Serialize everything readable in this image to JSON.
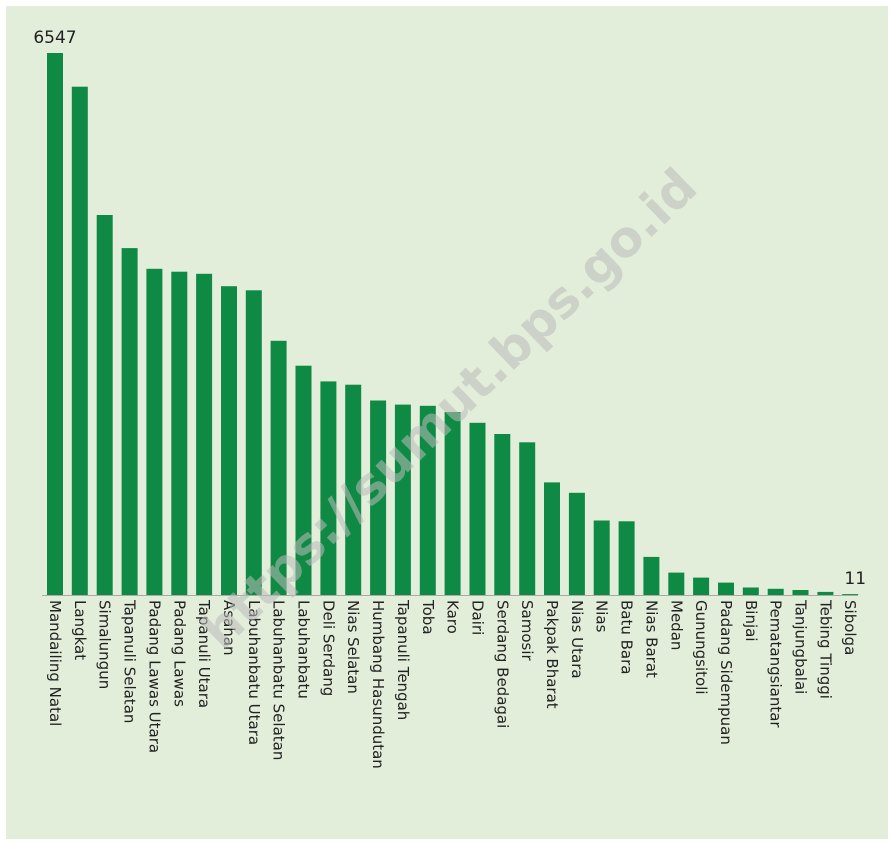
{
  "chart_data": {
    "type": "bar",
    "orientation": "vertical",
    "categories": [
      "Mandailing Natal",
      "Langkat",
      "Simalungun",
      "Tapanuli Selatan",
      "Padang Lawas Utara",
      "Padang Lawas",
      "Tapanuli Utara",
      "Asahan",
      "Labuhanbatu Utara",
      "Labuhanbatu Selatan",
      "Labuhanbatu",
      "Deli Serdang",
      "Nias Selatan",
      "Humbang Hasundutan",
      "Tapanuli Tengah",
      "Toba",
      "Karo",
      "Dairi",
      "Serdang Bedagai",
      "Samosir",
      "Pakpak Bharat",
      "Nias Utara",
      "Nias",
      "Batu Bara",
      "Nias Barat",
      "Medan",
      "Gunungsitoli",
      "Padang Sidempuan",
      "Binjai",
      "Pematangsiantar",
      "Tanjungbalai",
      "Tebing Tinggi",
      "Sibolga"
    ],
    "values": [
      6547,
      6140,
      4590,
      4190,
      3940,
      3905,
      3880,
      3730,
      3680,
      3070,
      2770,
      2580,
      2540,
      2350,
      2300,
      2285,
      2210,
      2080,
      1945,
      1845,
      1360,
      1235,
      900,
      890,
      460,
      270,
      210,
      150,
      90,
      75,
      60,
      38,
      11
    ],
    "data_labels": [
      {
        "index": 0,
        "text": "6547"
      },
      {
        "index": 32,
        "text": "11"
      }
    ],
    "ylim": [
      0,
      6547
    ],
    "grid": false,
    "legend": false,
    "title": "",
    "xlabel": "",
    "ylabel": "",
    "colors": {
      "bar": "#0f8a44",
      "background": "#e2eed9",
      "axis": "#a9a9a9"
    }
  },
  "watermark": "https://sumut.bps.go.id"
}
